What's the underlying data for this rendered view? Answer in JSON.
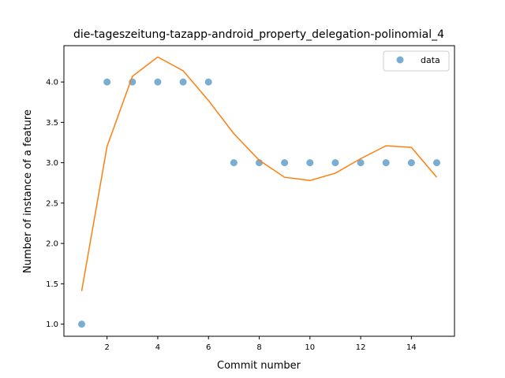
{
  "chart_data": {
    "type": "scatter",
    "title": "die-tageszeitung-tazapp-android_property_delegation-polinomial_4",
    "xlabel": "Commit number",
    "ylabel": "Number of instance of a feature",
    "xlim": [
      0.3,
      15.7
    ],
    "ylim": [
      0.85,
      4.45
    ],
    "xticks": [
      2,
      4,
      6,
      8,
      10,
      12,
      14
    ],
    "yticks": [
      1.0,
      1.5,
      2.0,
      2.5,
      3.0,
      3.5,
      4.0
    ],
    "ytick_labels": [
      "1.0",
      "1.5",
      "2.0",
      "2.5",
      "3.0",
      "3.5",
      "4.0"
    ],
    "grid": false,
    "legend_position": "top-right",
    "series": [
      {
        "name": "data",
        "kind": "scatter",
        "color": "#1f77b4",
        "x": [
          1,
          2,
          3,
          4,
          5,
          6,
          7,
          8,
          9,
          10,
          11,
          12,
          13,
          14,
          15
        ],
        "y": [
          1,
          4,
          4,
          4,
          4,
          4,
          3,
          3,
          3,
          3,
          3,
          3,
          3,
          3,
          3
        ]
      },
      {
        "kind": "line",
        "color": "#ff7f0e",
        "x": [
          1,
          2,
          3,
          4,
          5,
          6,
          7,
          8,
          9,
          10,
          11,
          12,
          13,
          14,
          15
        ],
        "y": [
          1.41,
          3.2,
          4.07,
          4.31,
          4.14,
          3.77,
          3.36,
          3.03,
          2.82,
          2.78,
          2.87,
          3.05,
          3.21,
          3.19,
          2.82
        ]
      }
    ]
  }
}
